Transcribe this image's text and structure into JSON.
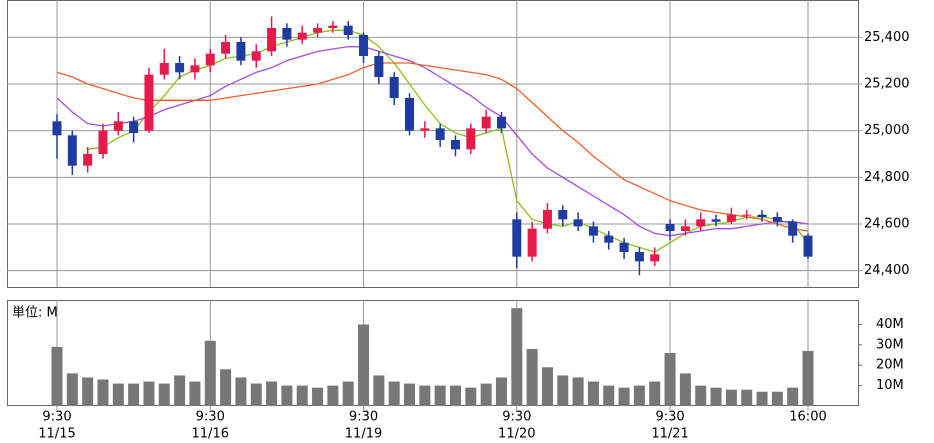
{
  "chart_data": {
    "type": "candlestick",
    "up_color": "#e8194b",
    "down_color": "#1f3aa0",
    "open": [
      25040,
      24980,
      24850,
      24900,
      25000,
      25040,
      25000,
      25240,
      25290,
      25250,
      25280,
      25330,
      25380,
      25300,
      25340,
      25440,
      25390,
      25420,
      25440,
      25450,
      25410,
      25320,
      25230,
      25140,
      25000,
      25010,
      24960,
      24920,
      25010,
      25060,
      24620,
      24460,
      24580,
      24660,
      24620,
      24590,
      24550,
      24520,
      24480,
      24440,
      24600,
      24570,
      24590,
      24620,
      24610,
      24640,
      24640,
      24630,
      24610,
      24550
    ],
    "high": [
      25070,
      25000,
      24930,
      25030,
      25080,
      25060,
      25270,
      25350,
      25320,
      25310,
      25350,
      25410,
      25400,
      25370,
      25490,
      25460,
      25450,
      25460,
      25470,
      25470,
      25420,
      25340,
      25250,
      25160,
      25040,
      25030,
      24980,
      25030,
      25090,
      25080,
      24650,
      24610,
      24690,
      24680,
      24650,
      24610,
      24570,
      24540,
      24500,
      24500,
      24620,
      24620,
      24650,
      24640,
      24670,
      24660,
      24660,
      24650,
      24620,
      24560
    ],
    "low": [
      24880,
      24810,
      24820,
      24880,
      24980,
      24950,
      24990,
      25220,
      25220,
      25220,
      25250,
      25310,
      25280,
      25270,
      25320,
      25360,
      25370,
      25400,
      25420,
      25390,
      25290,
      25200,
      25110,
      24980,
      24970,
      24930,
      24890,
      24900,
      24990,
      24990,
      24410,
      24440,
      24560,
      24590,
      24570,
      24520,
      24490,
      24450,
      24380,
      24420,
      24530,
      24550,
      24570,
      24590,
      24600,
      24620,
      24610,
      24590,
      24520,
      24450
    ],
    "close": [
      24980,
      24850,
      24900,
      25000,
      25040,
      24990,
      25240,
      25290,
      25250,
      25280,
      25330,
      25380,
      25300,
      25340,
      25440,
      25390,
      25420,
      25440,
      25450,
      25410,
      25320,
      25230,
      25140,
      25000,
      25010,
      24960,
      24920,
      25010,
      25060,
      25010,
      24460,
      24580,
      24660,
      24620,
      24590,
      24550,
      24520,
      24480,
      24440,
      24470,
      24570,
      24590,
      24620,
      24610,
      24640,
      24640,
      24630,
      24610,
      24550,
      24460
    ],
    "moving_averages": [
      {
        "color": "#8bc21a",
        "values": [
          null,
          null,
          24920,
          24930,
          24970,
          25000,
          25080,
          25150,
          25230,
          25260,
          25280,
          25310,
          25320,
          25330,
          25360,
          25380,
          25400,
          25420,
          25430,
          25430,
          25410,
          25360,
          25290,
          25200,
          25110,
          25030,
          24990,
          24970,
          24990,
          25010,
          24700,
          24620,
          24600,
          24590,
          24610,
          24580,
          24550,
          24520,
          24500,
          24480,
          24520,
          24560,
          24590,
          24600,
          24610,
          24630,
          24630,
          24620,
          24600,
          24520
        ]
      },
      {
        "color": "#a04ee8",
        "values": [
          25140,
          25080,
          25030,
          25020,
          25030,
          25040,
          25060,
          25090,
          25110,
          25130,
          25150,
          25190,
          25220,
          25250,
          25270,
          25300,
          25320,
          25340,
          25350,
          25360,
          25360,
          25340,
          25320,
          25300,
          25270,
          25230,
          25190,
          25150,
          25100,
          25060,
          24980,
          24900,
          24840,
          24800,
          24760,
          24720,
          24680,
          24640,
          24590,
          24560,
          24550,
          24560,
          24570,
          24580,
          24580,
          24590,
          24600,
          24610,
          24610,
          24600
        ]
      },
      {
        "color": "#f0602a",
        "values": [
          25250,
          25230,
          25200,
          25180,
          25160,
          25140,
          25130,
          25130,
          25130,
          25130,
          25130,
          25140,
          25150,
          25160,
          25170,
          25180,
          25190,
          25200,
          25220,
          25240,
          25270,
          25290,
          25290,
          25290,
          25280,
          25270,
          25260,
          25250,
          25240,
          25220,
          25180,
          25120,
          25060,
          25000,
          24950,
          24890,
          24840,
          24790,
          24760,
          24730,
          24700,
          24680,
          24660,
          24650,
          24640,
          24630,
          24620,
          24600,
          24580,
          24570
        ]
      }
    ],
    "ylim": [
      24330,
      25560
    ],
    "yticks": [
      {
        "value": 24400,
        "label": "24,400"
      },
      {
        "value": 24600,
        "label": "24,600"
      },
      {
        "value": 24800,
        "label": "24,800"
      },
      {
        "value": 25000,
        "label": "25,000"
      },
      {
        "value": 25200,
        "label": "25,200"
      },
      {
        "value": 25400,
        "label": "25,400"
      }
    ],
    "xticks": [
      {
        "value": 0,
        "label": "9:30",
        "date": "11/15"
      },
      {
        "value": 10,
        "label": "9:30",
        "date": "11/16"
      },
      {
        "value": 20,
        "label": "9:30",
        "date": "11/19"
      },
      {
        "value": 30,
        "label": "9:30",
        "date": "11/20"
      },
      {
        "value": 40,
        "label": "9:30",
        "date": "11/21"
      },
      {
        "value": 49,
        "label": "16:00"
      }
    ],
    "volume": {
      "unit_label": "単位: M",
      "color": "#777777",
      "values": [
        29,
        16,
        14,
        13,
        11,
        11,
        12,
        11,
        15,
        12,
        32,
        18,
        14,
        11,
        12,
        10,
        10,
        9,
        10,
        12,
        40,
        15,
        12,
        11,
        10,
        10,
        10,
        9,
        11,
        14,
        48,
        28,
        19,
        15,
        14,
        12,
        10,
        9,
        10,
        12,
        26,
        16,
        10,
        9,
        8,
        8,
        7,
        7,
        9,
        27
      ],
      "ylim": [
        0,
        52
      ],
      "yticks": [
        {
          "value": 10,
          "label": "10M"
        },
        {
          "value": 20,
          "label": "20M"
        },
        {
          "value": 30,
          "label": "30M"
        },
        {
          "value": 40,
          "label": "40M"
        }
      ]
    }
  }
}
